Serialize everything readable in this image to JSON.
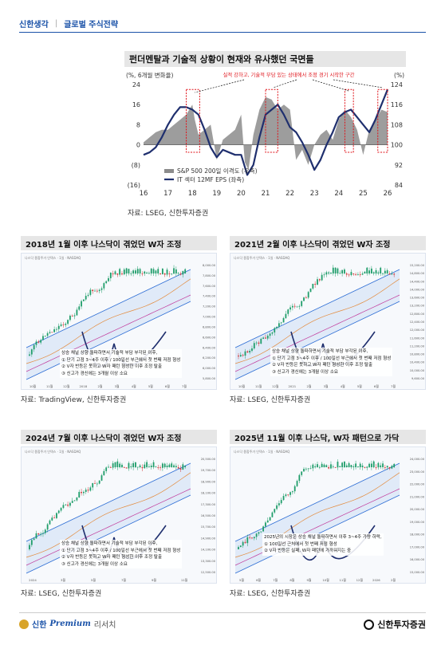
{
  "header": {
    "brand": "신한생각",
    "section": "글로벌 주식전략"
  },
  "main_panel": {
    "title": "펀더멘탈과 기술적 상황이 현재와 유사했던 국면들",
    "source": "자료: LSEG, 신한투자증권",
    "chart_data": {
      "type": "area",
      "left_axis_label": "(%, 6개월 변화율)",
      "right_axis_label": "(%)",
      "annotation": "실적 강하고, 기술적 부담 있는 상태에서 조정 경기 시작한 구간",
      "x_ticks": [
        "16",
        "17",
        "18",
        "19",
        "20",
        "21",
        "22",
        "23",
        "24",
        "25",
        "26"
      ],
      "y_left_ticks": [
        "24",
        "16",
        "8",
        "0",
        "(8)",
        "(16)"
      ],
      "y_right_ticks": [
        "124",
        "116",
        "108",
        "100",
        "92",
        "84"
      ],
      "ylim_left": [
        -16,
        24
      ],
      "ylim_right": [
        84,
        124
      ],
      "series": [
        {
          "name": "S&P 500 200일 이격도 (우측)",
          "color": "#8c8c8c",
          "type": "area",
          "x": [
            16,
            16.25,
            16.5,
            16.75,
            17,
            17.25,
            17.5,
            17.75,
            18,
            18.1,
            18.25,
            18.5,
            18.75,
            19,
            19.25,
            19.5,
            19.75,
            20,
            20.15,
            20.3,
            20.5,
            20.75,
            21,
            21.25,
            21.5,
            21.75,
            22,
            22.25,
            22.5,
            22.75,
            23,
            23.25,
            23.5,
            23.75,
            24,
            24.25,
            24.5,
            24.75,
            25,
            25.25,
            25.5,
            25.75,
            26
          ],
          "values": [
            101,
            103,
            105,
            106,
            106,
            108,
            110,
            112,
            116,
            110,
            104,
            106,
            108,
            94,
            102,
            104,
            106,
            112,
            93,
            90,
            104,
            114,
            119,
            118,
            114,
            116,
            114,
            94,
            98,
            92,
            100,
            104,
            106,
            102,
            110,
            114,
            111,
            106,
            96,
            106,
            110,
            114,
            113
          ]
        },
        {
          "name": "IT 섹터 12MF EPS (좌측)",
          "color": "#1f2f6e",
          "type": "line",
          "x": [
            16,
            16.25,
            16.5,
            16.75,
            17,
            17.25,
            17.5,
            17.75,
            18,
            18.25,
            18.5,
            18.75,
            19,
            19.25,
            19.5,
            19.75,
            20,
            20.25,
            20.5,
            20.75,
            21,
            21.25,
            21.5,
            21.75,
            22,
            22.25,
            22.5,
            22.75,
            23,
            23.25,
            23.5,
            23.75,
            24,
            24.25,
            24.5,
            24.75,
            25,
            25.25,
            25.5,
            25.75,
            26
          ],
          "values": [
            -4,
            -3,
            -1,
            3,
            8,
            12,
            15,
            15,
            14,
            12,
            6,
            -1,
            -5,
            -2,
            -3,
            -4,
            -4,
            -12,
            -8,
            3,
            12,
            14,
            16,
            12,
            7,
            5,
            1,
            -4,
            -10,
            -6,
            0,
            5,
            11,
            13,
            14,
            11,
            8,
            5,
            10,
            16,
            22
          ]
        }
      ],
      "highlights": [
        [
          17.75,
          18.3
        ],
        [
          21.0,
          21.5
        ],
        [
          24.25,
          24.6
        ],
        [
          25.6,
          26.0
        ]
      ]
    }
  },
  "panels": [
    {
      "title": "2018년 1월 이후 나스닥이 겪었던 W자 조정",
      "source": "자료: TradingView, 신한투자증권",
      "toolbar": "나스닥 종합주가 인덱스 · 1일 · NASDAQ",
      "annotation": [
        "상승 채널 상향 돌파하면서 기술적 부담 부각된 이후,",
        "① 단기 고점 3~4주 이후 / 100일선 부근에서 첫 번째 저점 형성",
        "② V자 반등은 못하고 W자 패턴 형성한 이후 조정 탈출",
        "③ 신고가 경신에는 3개월 이상 소요"
      ],
      "x_ticks": [
        "10월",
        "11월",
        "12월",
        "2018",
        "2월",
        "3월",
        "4월",
        "5월",
        "6월",
        "7월"
      ],
      "y_ticks": [
        "8,000.00",
        "7,800.00",
        "7,600.00",
        "7,400.00",
        "7,200.00",
        "7,000.00",
        "6,800.00",
        "6,600.00",
        "6,400.00",
        "6,200.00",
        "6,000.00",
        "5,800.00"
      ]
    },
    {
      "title": "2021년 2월 이후 나스닥이 겪었던 W자 조정",
      "source": "자료: LSEG, 신한투자증권",
      "toolbar": "나스닥 종합주가 인덱스 · 1일 · NASDAQ",
      "annotation": [
        "상승 채널 상향 돌파하면서 기술적 부담 부각된 이후,",
        "① 단기 고점 3~4주 이후 / 100일선 부근에서 첫 번째 저점 형성",
        "② V자 반등은 못하고 W자 패턴 형성한 이후 조정 탈출",
        "③ 신고가 경신에는 3개월 이상 소요"
      ],
      "x_ticks": [
        "10월",
        "11월",
        "12월",
        "2021",
        "2월",
        "3월",
        "4월",
        "5월",
        "6월",
        "7월"
      ],
      "y_ticks": [
        "15,200.00",
        "14,800.00",
        "14,400.00",
        "14,000.00",
        "13,600.00",
        "13,200.00",
        "12,800.00",
        "12,400.00",
        "12,000.00",
        "11,600.00",
        "11,200.00",
        "10,800.00",
        "10,400.00",
        "10,000.00",
        "9,600.00"
      ]
    },
    {
      "title": "2024년 7월 이후 나스닥이 겪었던 W자 조정",
      "source": "자료: LSEG, 신한투자증권",
      "toolbar": "나스닥 종합주가 인덱스 · 1일 · NASDAQ",
      "annotation": [
        "상승 채널 상향 돌파하면서 기술적 부담 부각된 이후,",
        "① 단기 고점 3~4주 이후 / 100일선 부근에서 첫 번째 저점 형성",
        "② V자 반등은 못하고 W자 패턴 형성한 이후 조정 탈출",
        "③ 신고가 경신에는 3개월 이상 소요"
      ],
      "x_ticks": [
        "2024",
        "3월",
        "5월",
        "7월",
        "9월",
        "11월"
      ],
      "y_ticks": [
        "20,500.00",
        "19,700.00",
        "18,900.00",
        "18,100.00",
        "17,300.00",
        "16,500.00",
        "15,700.00",
        "14,900.00",
        "14,100.00",
        "13,300.00",
        "12,500.00"
      ]
    },
    {
      "title": "2025년 11월 이후 나스닥, W자 패턴으로 가닥",
      "source": "자료: LSEG, 신한투자증권",
      "toolbar": "나스닥 종합주가 인덱스 · 1일 · NASDAQ",
      "annotation": [
        "2025년의 시장은 상승 채널 돌파하면서 이후 3~4주 가량 하락,",
        "① 100일선 근처에서 첫 번째 저점 형성",
        "② V자 반등은 실패, W자 패턴에 가까워지는 중"
      ],
      "x_ticks": [
        "5월",
        "6월",
        "7월",
        "8월",
        "9월",
        "10월",
        "11월",
        "12월",
        "2026",
        "2월"
      ],
      "y_ticks": [
        "24,000.00",
        "23,000.00",
        "22,000.00",
        "21,000.00",
        "20,000.00",
        "19,000.00",
        "18,000.00",
        "17,000.00",
        "16,000.00",
        "15,000.00"
      ]
    }
  ],
  "footer": {
    "brand_left": "신한",
    "premium": "Premium",
    "research": "리서치",
    "brand_right": "신한투자증권"
  }
}
